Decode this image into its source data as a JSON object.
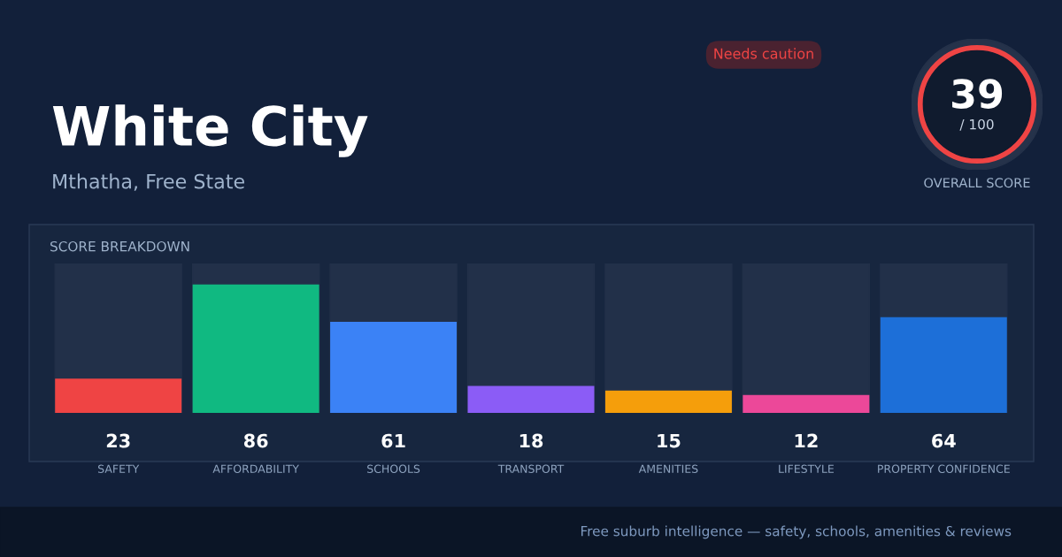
{
  "chart_data": {
    "type": "bar",
    "title": "White City",
    "subtitle": "Mthatha, Free State",
    "categories": [
      "SAFETY",
      "AFFORDABILITY",
      "SCHOOLS",
      "TRANSPORT",
      "AMENITIES",
      "LIFESTYLE",
      "PROPERTY CONFIDENCE"
    ],
    "values": [
      23,
      86,
      61,
      18,
      15,
      12,
      64
    ],
    "colors": [
      "#ef4444",
      "#10b981",
      "#3b82f6",
      "#8b5cf6",
      "#f59e0b",
      "#ec4899",
      "#1d6fd8"
    ],
    "ylim": [
      0,
      100
    ],
    "tick_labels": "x",
    "data_labels": true,
    "grid": false,
    "legend": false,
    "annotations": [
      "SCORE BREAKDOWN",
      "Needs caution",
      "39",
      "/ 100",
      "OVERALL SCORE",
      "Free suburb intelligence — safety, schools, amenities & reviews"
    ]
  }
}
